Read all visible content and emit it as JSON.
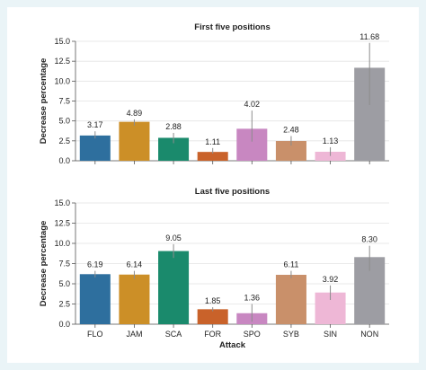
{
  "chart_data": [
    {
      "type": "bar",
      "title": "First five positions",
      "ylabel": "Decrease percentage",
      "xlabel": "",
      "ylim": [
        0,
        15
      ],
      "yticks": [
        "0.0",
        "2.5",
        "5.0",
        "7.5",
        "10.0",
        "12.5",
        "15.0"
      ],
      "categories": [
        "FLO",
        "JAM",
        "SCA",
        "FOR",
        "SPO",
        "SYB",
        "SIN",
        "NON"
      ],
      "values": [
        3.17,
        4.89,
        2.88,
        1.11,
        4.02,
        2.48,
        1.13,
        11.68
      ],
      "labels": [
        "3.17",
        "4.89",
        "2.88",
        "1.11",
        "4.02",
        "2.48",
        "1.13",
        "11.68"
      ],
      "errors": [
        [
          2.8,
          3.7
        ],
        [
          4.4,
          5.2
        ],
        [
          2.2,
          3.5
        ],
        [
          0.9,
          1.6
        ],
        [
          2.4,
          6.3
        ],
        [
          1.9,
          3.1
        ],
        [
          0.6,
          1.7
        ],
        [
          7.0,
          14.8
        ]
      ],
      "grid": true,
      "show_tick_labels": false
    },
    {
      "type": "bar",
      "title": "Last five positions",
      "ylabel": "Decrease percentage",
      "xlabel": "Attack",
      "ylim": [
        0,
        15
      ],
      "yticks": [
        "0.0",
        "2.5",
        "5.0",
        "7.5",
        "10.0",
        "12.5",
        "15.0"
      ],
      "categories": [
        "FLO",
        "JAM",
        "SCA",
        "FOR",
        "SPO",
        "SYB",
        "SIN",
        "NON"
      ],
      "values": [
        6.19,
        6.14,
        9.05,
        1.85,
        1.36,
        6.11,
        3.92,
        8.3
      ],
      "labels": [
        "6.19",
        "6.14",
        "9.05",
        "1.85",
        "1.36",
        "6.11",
        "3.92",
        "8.30"
      ],
      "errors": [
        [
          5.8,
          6.6
        ],
        [
          5.6,
          6.6
        ],
        [
          8.2,
          9.9
        ],
        [
          1.6,
          2.1
        ],
        [
          0.3,
          2.5
        ],
        [
          5.7,
          6.6
        ],
        [
          3.0,
          4.8
        ],
        [
          6.6,
          9.7
        ]
      ],
      "grid": true,
      "show_tick_labels": true
    }
  ],
  "colors": [
    "#2e6f9e",
    "#cc8f27",
    "#1a8a6c",
    "#c9622a",
    "#c887c1",
    "#c9906a",
    "#eeb7d6",
    "#9d9da3"
  ]
}
